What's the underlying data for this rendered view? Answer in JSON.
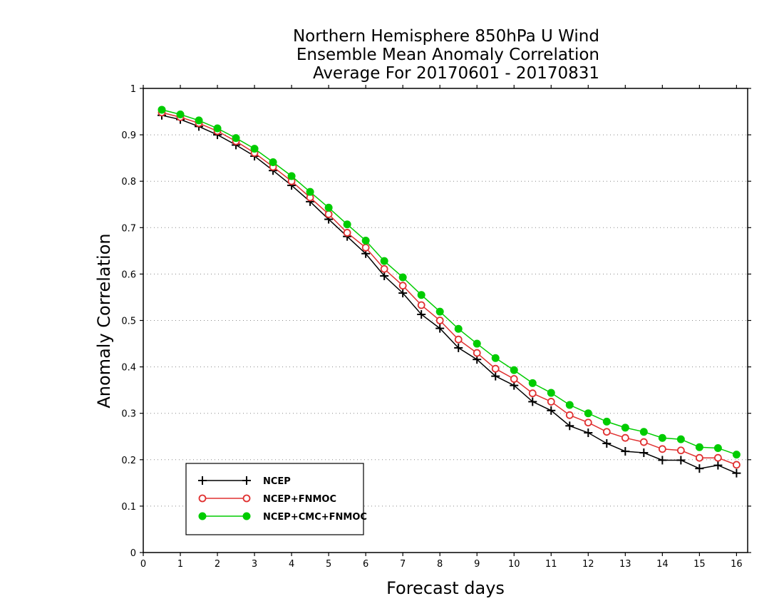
{
  "chart_data": {
    "type": "line",
    "title": [
      "Northern Hemisphere 850hPa U Wind",
      "Ensemble Mean Anomaly Correlation",
      "Average For 20170601 - 20170831"
    ],
    "xlabel": "Forecast days",
    "ylabel": "Anomaly Correlation",
    "xlim": [
      0,
      16.3
    ],
    "ylim": [
      0,
      1
    ],
    "xticks": [
      "0",
      "1",
      "2",
      "3",
      "4",
      "5",
      "6",
      "7",
      "8",
      "9",
      "10",
      "11",
      "12",
      "13",
      "14",
      "15",
      "16"
    ],
    "yticks": [
      "0",
      "0.1",
      "0.2",
      "0.3",
      "0.4",
      "0.5",
      "0.6",
      "0.7",
      "0.8",
      "0.9",
      "1"
    ],
    "grid": "horizontal dotted",
    "legend_position": "bottom-left",
    "x": [
      0.5,
      1,
      1.5,
      2,
      2.5,
      3,
      3.5,
      4,
      4.5,
      5,
      5.5,
      6,
      6.5,
      7,
      7.5,
      8,
      8.5,
      9,
      9.5,
      10,
      10.5,
      11,
      11.5,
      12,
      12.5,
      13,
      13.5,
      14,
      14.5,
      15,
      15.5,
      16
    ],
    "series": [
      {
        "name": "NCEP",
        "color": "#000000",
        "marker": "plus",
        "values": [
          0.942,
          0.933,
          0.918,
          0.9,
          0.878,
          0.854,
          0.823,
          0.791,
          0.756,
          0.718,
          0.681,
          0.644,
          0.596,
          0.559,
          0.513,
          0.483,
          0.441,
          0.416,
          0.38,
          0.36,
          0.325,
          0.306,
          0.273,
          0.258,
          0.235,
          0.218,
          0.215,
          0.199,
          0.199,
          0.181,
          0.188,
          0.171
        ]
      },
      {
        "name": "NCEP+FNMOC",
        "color": "#e03030",
        "marker": "open-circle",
        "values": [
          0.948,
          0.938,
          0.925,
          0.908,
          0.886,
          0.861,
          0.831,
          0.8,
          0.765,
          0.729,
          0.689,
          0.657,
          0.611,
          0.575,
          0.533,
          0.5,
          0.459,
          0.43,
          0.396,
          0.374,
          0.343,
          0.325,
          0.296,
          0.28,
          0.26,
          0.247,
          0.238,
          0.223,
          0.22,
          0.204,
          0.204,
          0.189
        ]
      },
      {
        "name": "NCEP+CMC+FNMOC",
        "color": "#00cc00",
        "marker": "filled-circle",
        "values": [
          0.954,
          0.944,
          0.931,
          0.914,
          0.893,
          0.87,
          0.841,
          0.811,
          0.777,
          0.743,
          0.707,
          0.672,
          0.628,
          0.593,
          0.555,
          0.519,
          0.482,
          0.45,
          0.419,
          0.393,
          0.365,
          0.344,
          0.318,
          0.3,
          0.282,
          0.269,
          0.26,
          0.247,
          0.244,
          0.227,
          0.225,
          0.211
        ]
      }
    ]
  }
}
